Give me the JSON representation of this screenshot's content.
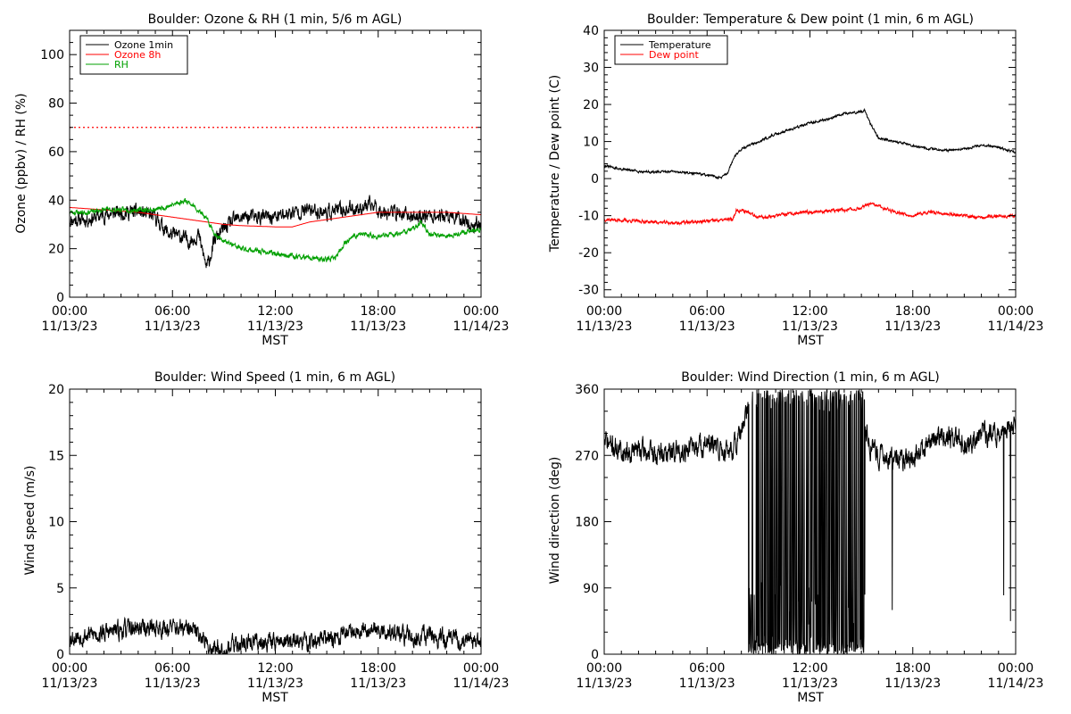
{
  "chart_data": [
    {
      "type": "line",
      "title": "Boulder: Ozone & RH (1 min, 5/6 m AGL)",
      "xlabel": "MST",
      "ylabel": "Ozone (ppbv) / RH (%)",
      "x_ticks": [
        {
          "hour": 0,
          "time": "00:00",
          "date": "11/13/23"
        },
        {
          "hour": 6,
          "time": "06:00",
          "date": "11/13/23"
        },
        {
          "hour": 12,
          "time": "12:00",
          "date": "11/13/23"
        },
        {
          "hour": 18,
          "time": "18:00",
          "date": "11/13/23"
        },
        {
          "hour": 24,
          "time": "00:00",
          "date": "11/14/23"
        }
      ],
      "xlim": [
        0,
        24
      ],
      "ylim": [
        0,
        110
      ],
      "y_ticks": [
        0,
        20,
        40,
        60,
        80,
        100
      ],
      "y_minor_step": 5,
      "legend_position": "top-left",
      "grid": false,
      "reference_line": {
        "y": 70,
        "color": "#ff0000",
        "style": "dotted"
      },
      "series": [
        {
          "name": "Ozone 1min",
          "color": "#000000",
          "noise": 2.4,
          "seed": 11,
          "points": [
            [
              0,
              32
            ],
            [
              1,
              32
            ],
            [
              2,
              34
            ],
            [
              3,
              35
            ],
            [
              4,
              35
            ],
            [
              5,
              33
            ],
            [
              5.8,
              26
            ],
            [
              6.5,
              25
            ],
            [
              7,
              23
            ],
            [
              7.5,
              26
            ],
            [
              8,
              12
            ],
            [
              8.5,
              24
            ],
            [
              9,
              28
            ],
            [
              9.5,
              31
            ],
            [
              10,
              33
            ],
            [
              11,
              33
            ],
            [
              12,
              33
            ],
            [
              13,
              35
            ],
            [
              14,
              36
            ],
            [
              15,
              35
            ],
            [
              16,
              36
            ],
            [
              17,
              37
            ],
            [
              17.8,
              38
            ],
            [
              18,
              36
            ],
            [
              19,
              35
            ],
            [
              20,
              33
            ],
            [
              21,
              34
            ],
            [
              22,
              33
            ],
            [
              23,
              32
            ],
            [
              23.5,
              29
            ],
            [
              24,
              31
            ]
          ]
        },
        {
          "name": "Ozone 8h",
          "color": "#ff0000",
          "noise": 0,
          "seed": 0,
          "points": [
            [
              0,
              37
            ],
            [
              2,
              36
            ],
            [
              4,
              35
            ],
            [
              6,
              33
            ],
            [
              8,
              31
            ],
            [
              9,
              30
            ],
            [
              10,
              29.5
            ],
            [
              12,
              29
            ],
            [
              13,
              29
            ],
            [
              14,
              31
            ],
            [
              16,
              33
            ],
            [
              18,
              35
            ],
            [
              20,
              35
            ],
            [
              22,
              35
            ],
            [
              24,
              34
            ]
          ]
        },
        {
          "name": "RH",
          "color": "#00a000",
          "noise": 0.8,
          "seed": 23,
          "points": [
            [
              0,
              35
            ],
            [
              1,
              35
            ],
            [
              2,
              36
            ],
            [
              3,
              36
            ],
            [
              4,
              36
            ],
            [
              5,
              36
            ],
            [
              6,
              38
            ],
            [
              6.8,
              40
            ],
            [
              7.5,
              36
            ],
            [
              8,
              32
            ],
            [
              8.5,
              26
            ],
            [
              9,
              23
            ],
            [
              10,
              20
            ],
            [
              11,
              19
            ],
            [
              12,
              18
            ],
            [
              13,
              17
            ],
            [
              14,
              16
            ],
            [
              15,
              15.5
            ],
            [
              15.5,
              16
            ],
            [
              16,
              22
            ],
            [
              16.5,
              25
            ],
            [
              17,
              26
            ],
            [
              18,
              25
            ],
            [
              19,
              26
            ],
            [
              20,
              28
            ],
            [
              20.5,
              31
            ],
            [
              21,
              26
            ],
            [
              22,
              25
            ],
            [
              23,
              27
            ],
            [
              24,
              28
            ]
          ]
        }
      ]
    },
    {
      "type": "line",
      "title": "Boulder: Temperature & Dew point (1 min, 6 m AGL)",
      "xlabel": "MST",
      "ylabel": "Temperature / Dew point (C)",
      "x_ticks": [
        {
          "hour": 0,
          "time": "00:00",
          "date": "11/13/23"
        },
        {
          "hour": 6,
          "time": "06:00",
          "date": "11/13/23"
        },
        {
          "hour": 12,
          "time": "12:00",
          "date": "11/13/23"
        },
        {
          "hour": 18,
          "time": "18:00",
          "date": "11/13/23"
        },
        {
          "hour": 24,
          "time": "00:00",
          "date": "11/14/23"
        }
      ],
      "xlim": [
        0,
        24
      ],
      "ylim": [
        -32,
        40
      ],
      "y_ticks": [
        -30,
        -20,
        -10,
        0,
        10,
        20,
        30,
        40
      ],
      "y_minor_step": 2,
      "legend_position": "top-left",
      "grid": false,
      "series": [
        {
          "name": "Temperature",
          "color": "#000000",
          "noise": 0.25,
          "seed": 31,
          "points": [
            [
              0,
              3.5
            ],
            [
              1,
              2.5
            ],
            [
              2,
              2
            ],
            [
              3,
              1.7
            ],
            [
              4,
              2
            ],
            [
              5,
              1.5
            ],
            [
              6,
              1
            ],
            [
              6.8,
              0.2
            ],
            [
              7.2,
              1.5
            ],
            [
              7.6,
              6
            ],
            [
              8,
              8
            ],
            [
              9,
              10
            ],
            [
              10,
              12
            ],
            [
              11,
              13.5
            ],
            [
              12,
              15
            ],
            [
              13,
              16
            ],
            [
              14,
              17.5
            ],
            [
              15,
              18
            ],
            [
              15.2,
              18.5
            ],
            [
              15.5,
              15
            ],
            [
              16,
              11
            ],
            [
              17,
              10
            ],
            [
              18,
              9
            ],
            [
              19,
              8
            ],
            [
              20,
              7.5
            ],
            [
              21,
              8
            ],
            [
              22,
              9
            ],
            [
              23,
              8.5
            ],
            [
              24,
              7
            ]
          ]
        },
        {
          "name": "Dew point",
          "color": "#ff0000",
          "noise": 0.35,
          "seed": 37,
          "points": [
            [
              0,
              -11
            ],
            [
              2,
              -11.5
            ],
            [
              4,
              -12
            ],
            [
              6,
              -11.5
            ],
            [
              7.5,
              -11
            ],
            [
              7.7,
              -8.5
            ],
            [
              8.5,
              -9
            ],
            [
              9,
              -10.5
            ],
            [
              10,
              -10
            ],
            [
              12,
              -9
            ],
            [
              14,
              -8.5
            ],
            [
              15,
              -8
            ],
            [
              15.5,
              -6.8
            ],
            [
              16,
              -7.5
            ],
            [
              17,
              -9
            ],
            [
              18,
              -10
            ],
            [
              19,
              -9
            ],
            [
              20,
              -9.5
            ],
            [
              21,
              -10
            ],
            [
              22,
              -10.5
            ],
            [
              23,
              -10
            ],
            [
              24,
              -10
            ]
          ]
        }
      ]
    },
    {
      "type": "line",
      "title": "Boulder: Wind Speed (1 min, 6 m AGL)",
      "xlabel": "MST",
      "ylabel": "Wind speed (m/s)",
      "x_ticks": [
        {
          "hour": 0,
          "time": "00:00",
          "date": "11/13/23"
        },
        {
          "hour": 6,
          "time": "06:00",
          "date": "11/13/23"
        },
        {
          "hour": 12,
          "time": "12:00",
          "date": "11/13/23"
        },
        {
          "hour": 18,
          "time": "18:00",
          "date": "11/13/23"
        },
        {
          "hour": 24,
          "time": "00:00",
          "date": "11/14/23"
        }
      ],
      "xlim": [
        0,
        24
      ],
      "ylim": [
        0,
        20
      ],
      "y_ticks": [
        0,
        5,
        10,
        15,
        20
      ],
      "y_minor_step": 1,
      "grid": false,
      "series": [
        {
          "name": "",
          "color": "#000000",
          "noise": 0.55,
          "seed": 53,
          "points": [
            [
              0,
              1.3
            ],
            [
              2,
              1.6
            ],
            [
              4,
              2
            ],
            [
              6,
              2
            ],
            [
              7,
              1.8
            ],
            [
              7.7,
              1.5
            ],
            [
              8,
              0.6
            ],
            [
              9,
              0.4
            ],
            [
              10,
              0.9
            ],
            [
              12,
              1
            ],
            [
              14,
              0.9
            ],
            [
              15.5,
              1.2
            ],
            [
              16,
              1.6
            ],
            [
              17,
              2
            ],
            [
              18,
              1.8
            ],
            [
              19,
              1.5
            ],
            [
              20,
              1.3
            ],
            [
              21,
              1.4
            ],
            [
              22,
              1.1
            ],
            [
              23,
              1
            ],
            [
              24,
              1
            ]
          ]
        }
      ]
    },
    {
      "type": "line",
      "title": "Boulder: Wind Direction (1 min, 6 m AGL)",
      "xlabel": "MST",
      "ylabel": "Wind direction (deg)",
      "x_ticks": [
        {
          "hour": 0,
          "time": "00:00",
          "date": "11/13/23"
        },
        {
          "hour": 6,
          "time": "06:00",
          "date": "11/13/23"
        },
        {
          "hour": 12,
          "time": "12:00",
          "date": "11/13/23"
        },
        {
          "hour": 18,
          "time": "18:00",
          "date": "11/13/23"
        },
        {
          "hour": 24,
          "time": "00:00",
          "date": "11/14/23"
        }
      ],
      "xlim": [
        0,
        24
      ],
      "ylim": [
        0,
        360
      ],
      "y_ticks": [
        0,
        90,
        180,
        270,
        360
      ],
      "y_minor_step": 30,
      "grid": false,
      "wrap_period": {
        "start_hour": 8.4,
        "end_hour": 15.2
      },
      "spikes": [
        [
          16.8,
          60
        ],
        [
          23.3,
          80
        ],
        [
          23.7,
          45
        ]
      ],
      "series": [
        {
          "name": "",
          "color": "#000000",
          "noise": 12,
          "seed": 71,
          "points": [
            [
              0,
              290
            ],
            [
              1,
              275
            ],
            [
              2,
              278
            ],
            [
              3,
              270
            ],
            [
              4,
              275
            ],
            [
              5,
              280
            ],
            [
              6,
              285
            ],
            [
              7,
              275
            ],
            [
              7.7,
              285
            ],
            [
              8,
              300
            ],
            [
              8.4,
              330
            ],
            [
              15.2,
              300
            ],
            [
              15.5,
              280
            ],
            [
              16,
              270
            ],
            [
              17,
              262
            ],
            [
              18,
              268
            ],
            [
              18.5,
              275
            ],
            [
              19,
              290
            ],
            [
              20,
              295
            ],
            [
              21,
              285
            ],
            [
              22,
              300
            ],
            [
              23,
              295
            ],
            [
              24,
              310
            ]
          ]
        }
      ]
    }
  ]
}
